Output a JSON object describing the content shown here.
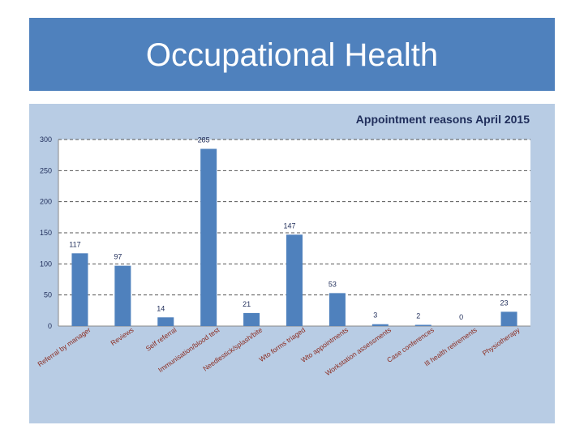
{
  "slide": {
    "title": "Occupational Health"
  },
  "colors": {
    "banner": "#4f81bd",
    "panel": "#b8cce4",
    "plot_area": "#ffffff",
    "bar": "#4f81bd",
    "category_text": "#8b2a1e"
  },
  "chart_data": {
    "type": "bar",
    "title": "Appointment reasons April 2015",
    "xlabel": "",
    "ylabel": "",
    "ylim": [
      0,
      300
    ],
    "yticks": [
      0,
      50,
      100,
      150,
      200,
      250,
      300
    ],
    "grid": true,
    "legend": "none",
    "categories": [
      "Referral by manager",
      "Reviews",
      "Self referral",
      "Immunisation/blood test",
      "Needlestick/splash/bite",
      "Wto forms triaged",
      "Wto appointments",
      "Workstation assessments",
      "Case conferences",
      "Ill health retirements",
      "Physiotherapy"
    ],
    "values": [
      117,
      97,
      14,
      285,
      21,
      147,
      53,
      3,
      2,
      0,
      23
    ],
    "data_labels": [
      "117",
      "97",
      "14",
      "285",
      "21",
      "147",
      "53",
      "3",
      "2",
      "0",
      "23"
    ]
  }
}
